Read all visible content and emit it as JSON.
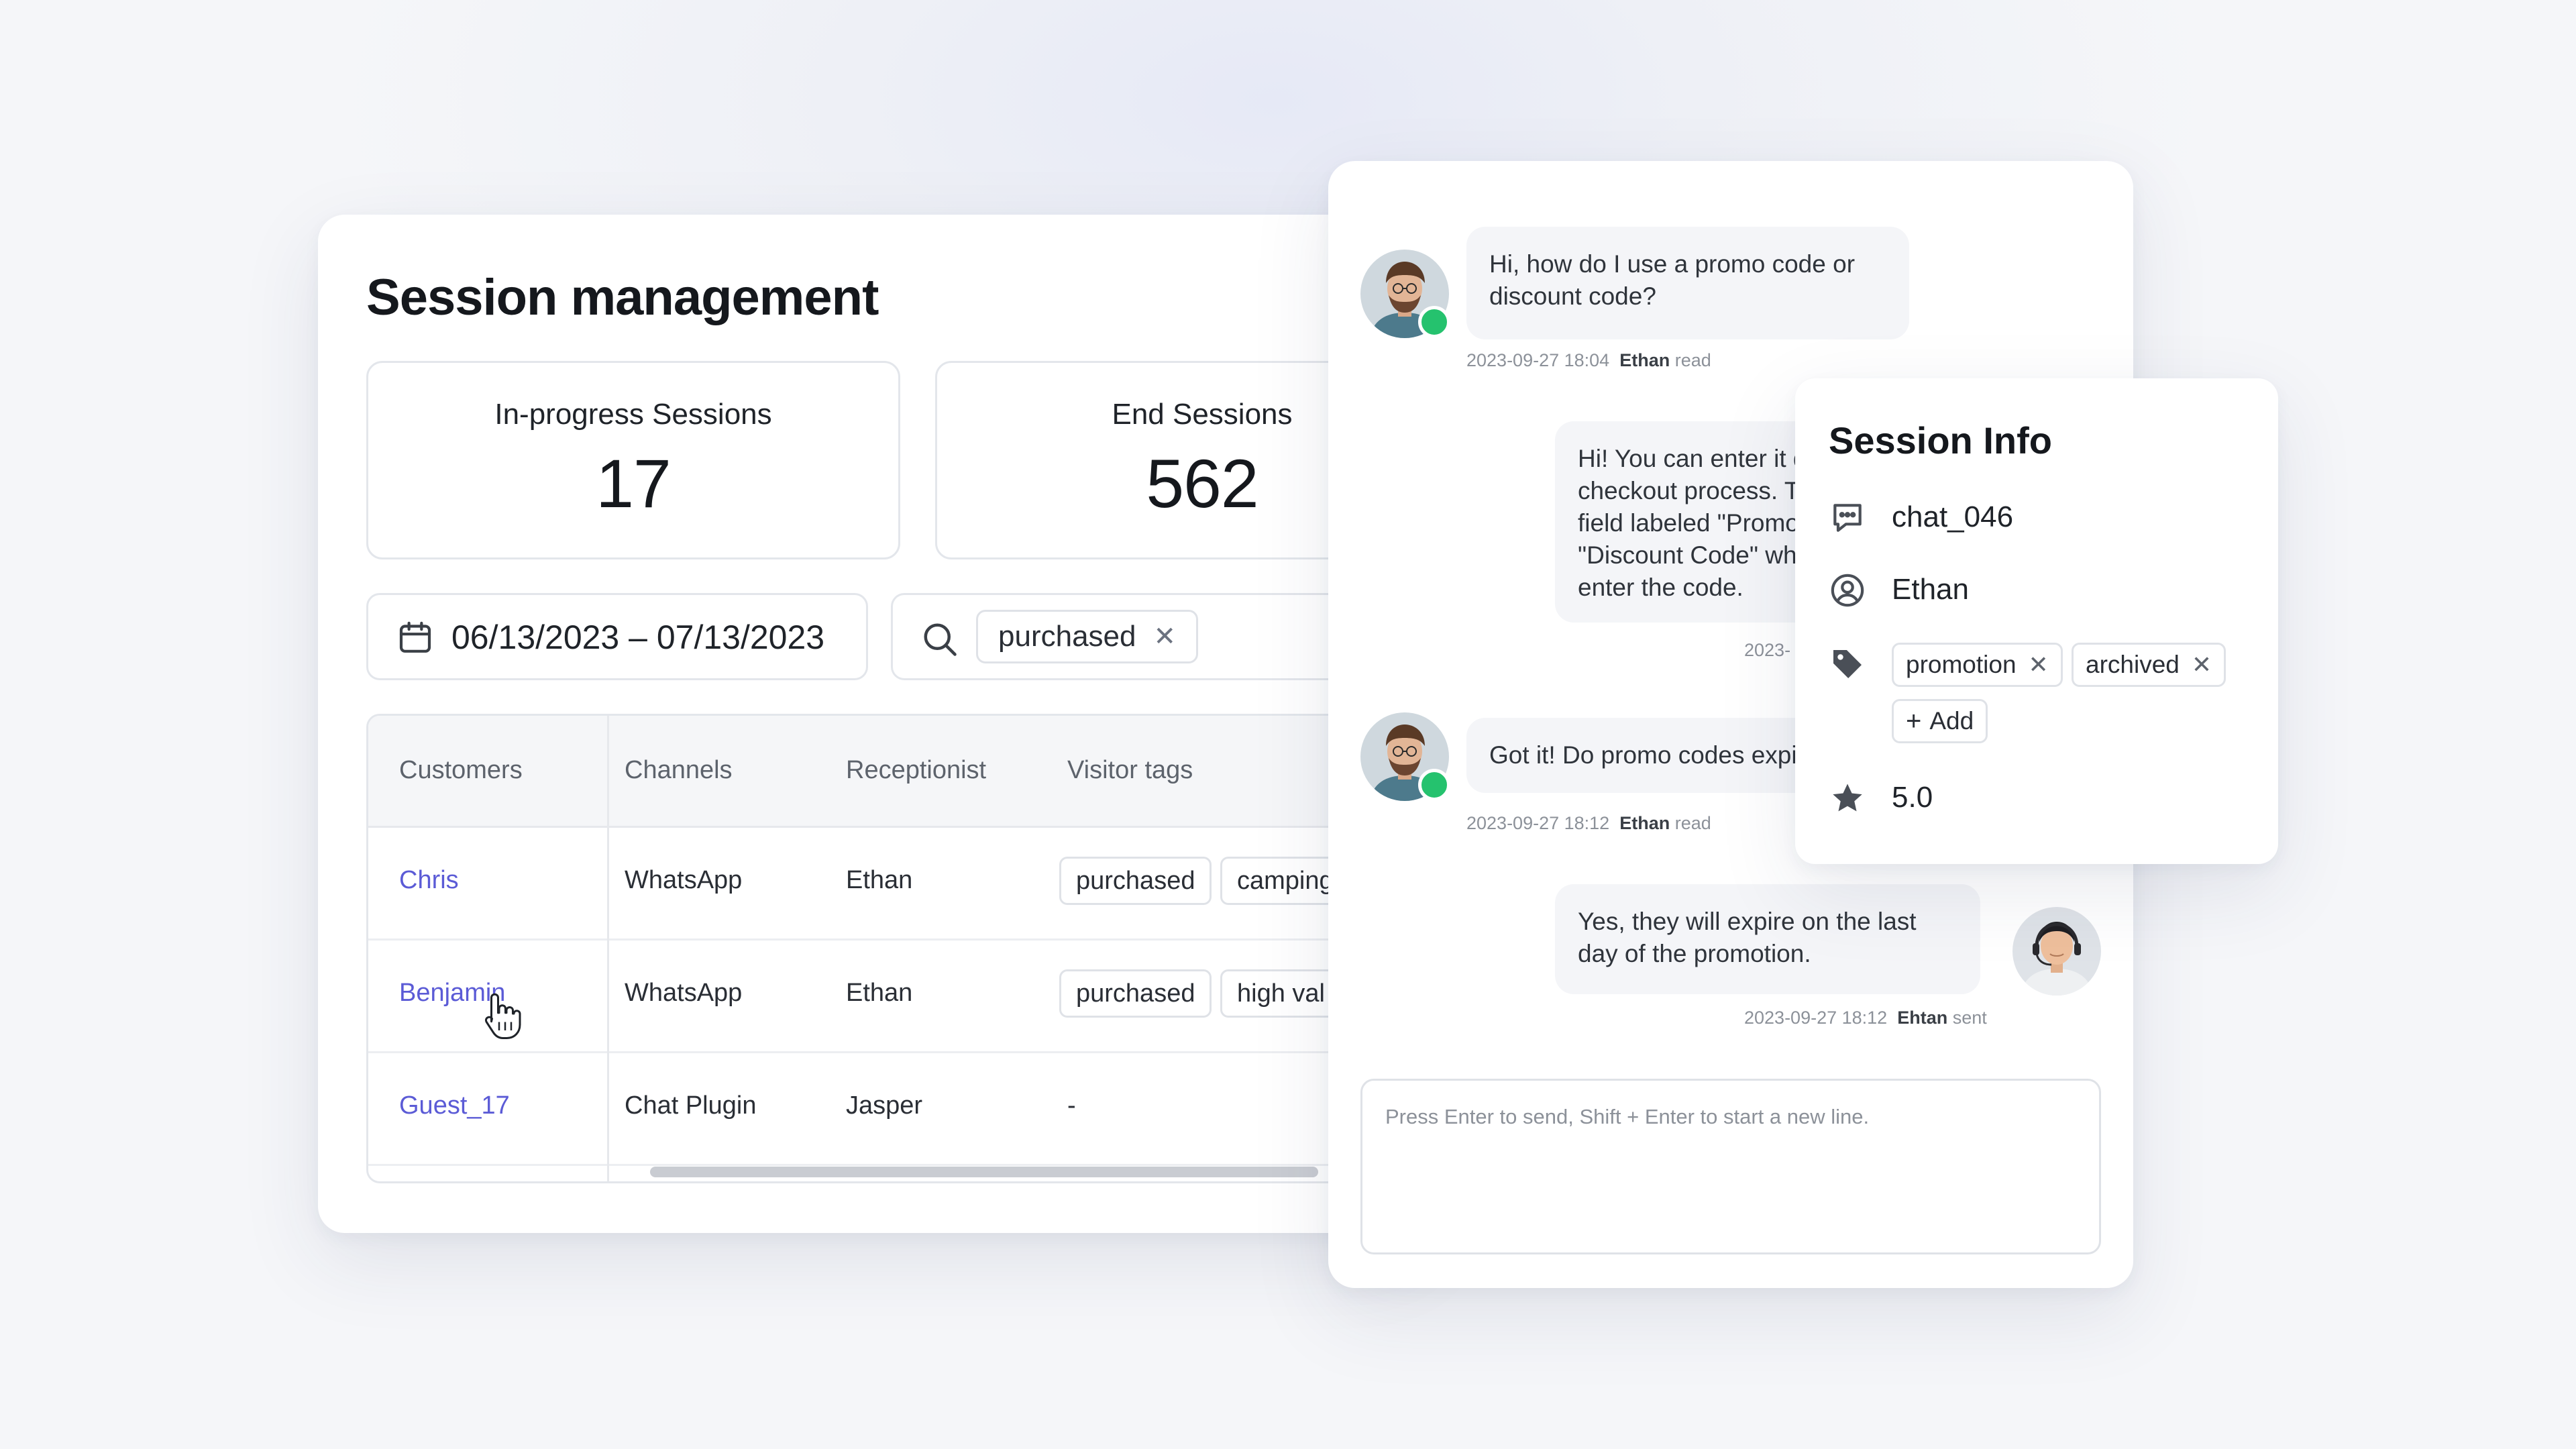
{
  "session_management": {
    "title": "Session management",
    "stats": [
      {
        "label": "In-progress Sessions",
        "value": "17"
      },
      {
        "label": "End Sessions",
        "value": "562"
      }
    ],
    "date_range": "06/13/2023 – 07/13/2023",
    "search_tag": "purchased",
    "table": {
      "columns": [
        "Customers",
        "Channels",
        "Receptionist",
        "Visitor tags"
      ],
      "rows": [
        {
          "customer": "Chris",
          "channel": "WhatsApp",
          "receptionist": "Ethan",
          "tags": [
            "purchased",
            "camping"
          ]
        },
        {
          "customer": "Benjamin",
          "channel": "WhatsApp",
          "receptionist": "Ethan",
          "tags": [
            "purchased",
            "high val"
          ]
        },
        {
          "customer": "Guest_17",
          "channel": "Chat Plugin",
          "receptionist": "Jasper",
          "tags_empty": "-"
        }
      ]
    }
  },
  "chat": {
    "messages": [
      {
        "text": "Hi, how do I use a promo code or discount code?",
        "time": "2023-09-27 18:04",
        "who": "Ethan",
        "status": "read"
      },
      {
        "text": "Hi! You can enter it during the checkout process. There should be a field labeled \"Promo Code\" or \"Discount Code\" where you can enter the code.",
        "time": "2023-"
      },
      {
        "text": "Got it! Do promo codes expire?",
        "time": "2023-09-27 18:12",
        "who": "Ethan",
        "status": "read"
      },
      {
        "text": "Yes, they will expire on the last day of the promotion.",
        "time": "2023-09-27 18:12",
        "who": "Ehtan",
        "status": "sent"
      }
    ],
    "composer_placeholder": "Press Enter to send,  Shift + Enter to start a new line."
  },
  "session_info": {
    "title": "Session Info",
    "chat_id": "chat_046",
    "user": "Ethan",
    "tags": [
      "promotion",
      "archived"
    ],
    "add_label": "Add",
    "add_prefix": "+",
    "rating": "5.0"
  },
  "icons": {
    "remove": "✕"
  },
  "colors": {
    "link": "#5b5bd6",
    "whatsapp": "#25c26e"
  }
}
